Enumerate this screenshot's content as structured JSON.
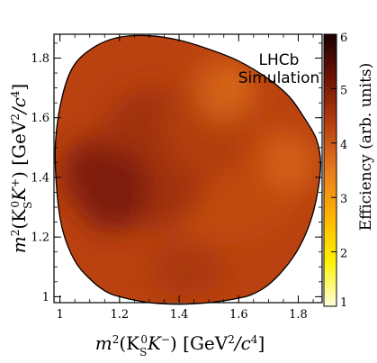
{
  "chart_data": {
    "type": "heatmap",
    "annotations": [
      "LHCb",
      "Simulation"
    ],
    "x": {
      "label_parts": [
        "m",
        "2",
        "(K",
        "S",
        "0",
        "K",
        "−",
        ") [GeV",
        "2",
        "/c",
        "4",
        "]"
      ],
      "range": [
        0.98,
        1.88
      ],
      "ticks": [
        "1",
        "1.2",
        "1.4",
        "1.6",
        "1.8"
      ],
      "tick_values": [
        1.0,
        1.2,
        1.4,
        1.6,
        1.8
      ]
    },
    "y": {
      "label_parts": [
        "m",
        "2",
        "(K",
        "S",
        "0",
        "K",
        "+",
        ") [GeV",
        "2",
        "/c",
        "4",
        "]"
      ],
      "range": [
        0.98,
        1.88
      ],
      "ticks": [
        "1",
        "1.2",
        "1.4",
        "1.6",
        "1.8"
      ],
      "tick_values": [
        1.0,
        1.2,
        1.4,
        1.6,
        1.8
      ]
    },
    "colorbar": {
      "label": "Efficiency (arb. units)",
      "range": [
        1,
        6
      ],
      "ticks": [
        "1",
        "2",
        "3",
        "4",
        "5",
        "6"
      ],
      "tick_values": [
        1,
        2,
        3,
        4,
        5,
        6
      ],
      "colors": [
        "#ffffdf",
        "#fff200",
        "#ffb300",
        "#e87a1e",
        "#b8400f",
        "#701406",
        "#1a0000"
      ]
    },
    "dalitz_boundary": [
      [
        0.985,
        1.52
      ],
      [
        0.99,
        1.35
      ],
      [
        1.01,
        1.22
      ],
      [
        1.05,
        1.12
      ],
      [
        1.1,
        1.06
      ],
      [
        1.15,
        1.02
      ],
      [
        1.2,
        1.0
      ],
      [
        1.3,
        0.98
      ],
      [
        1.4,
        0.975
      ],
      [
        1.5,
        0.98
      ],
      [
        1.6,
        0.995
      ],
      [
        1.65,
        1.01
      ],
      [
        1.7,
        1.04
      ],
      [
        1.75,
        1.09
      ],
      [
        1.8,
        1.16
      ],
      [
        1.84,
        1.25
      ],
      [
        1.865,
        1.35
      ],
      [
        1.875,
        1.45
      ],
      [
        1.86,
        1.53
      ],
      [
        1.82,
        1.6
      ],
      [
        1.77,
        1.67
      ],
      [
        1.7,
        1.73
      ],
      [
        1.6,
        1.79
      ],
      [
        1.5,
        1.83
      ],
      [
        1.4,
        1.86
      ],
      [
        1.3,
        1.875
      ],
      [
        1.2,
        1.87
      ],
      [
        1.12,
        1.84
      ],
      [
        1.05,
        1.78
      ],
      [
        1.01,
        1.68
      ]
    ],
    "efficiency_regions": [
      {
        "x": [
          1.3,
          1.82
        ],
        "y": [
          1.18,
          1.62
        ],
        "value": 4.2
      },
      {
        "x": [
          1.0,
          1.35
        ],
        "y": [
          1.28,
          1.55
        ],
        "value": 4.9
      },
      {
        "x": [
          1.12,
          1.5
        ],
        "y": [
          1.22,
          1.7
        ],
        "value": 4.6
      },
      {
        "x": [
          1.05,
          1.3
        ],
        "y": [
          1.22,
          1.5
        ],
        "value": 5.0
      },
      {
        "x": [
          1.35,
          1.65
        ],
        "y": [
          1.4,
          1.75
        ],
        "value": 4.4
      },
      {
        "x": [
          1.3,
          1.55
        ],
        "y": [
          1.0,
          1.18
        ],
        "value": 4.5
      },
      {
        "x": [
          1.45,
          1.65
        ],
        "y": [
          1.58,
          1.8
        ],
        "value": 3.9
      },
      {
        "x": [
          1.68,
          1.86
        ],
        "y": [
          1.35,
          1.55
        ],
        "value": 3.9
      },
      {
        "x": [
          1.58,
          1.62
        ],
        "y": [
          1.68,
          1.74
        ],
        "value": 3.4
      }
    ],
    "base_value": 4.3
  }
}
